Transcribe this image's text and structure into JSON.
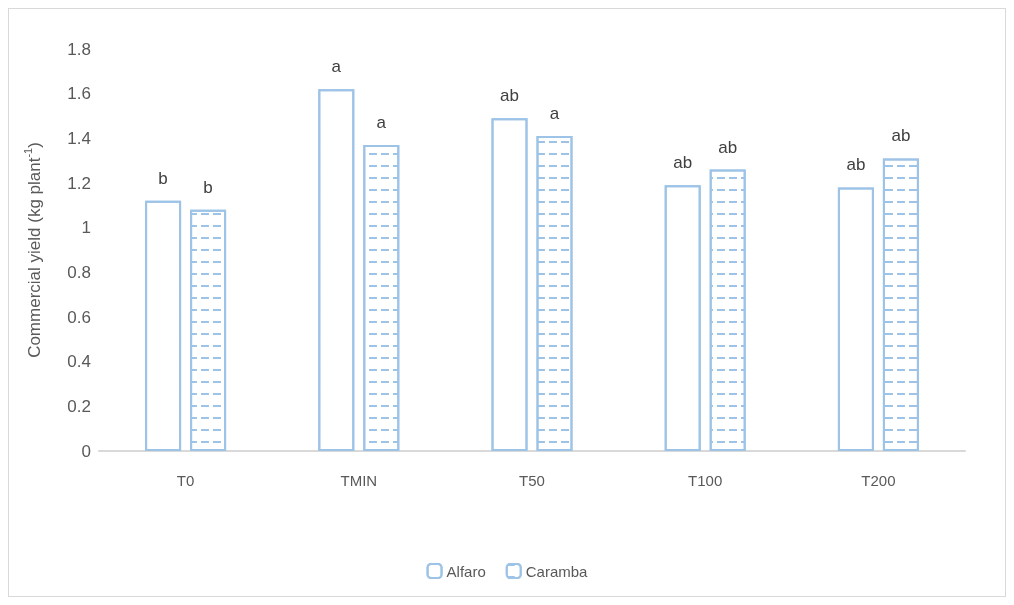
{
  "chart_data": {
    "type": "bar",
    "ylabel": "Commercial yield (kg plant$^{-1}$)",
    "categories": [
      "T0",
      "TMIN",
      "T50",
      "T100",
      "T200"
    ],
    "series": [
      {
        "name": "Alfaro",
        "color": "#9dc3e6",
        "values": [
          1.12,
          1.62,
          1.49,
          1.19,
          1.18
        ],
        "value_labels": [
          "b",
          "a",
          "ab",
          "ab",
          "ab"
        ]
      },
      {
        "name": "Caramba",
        "color": "#9dc3e6",
        "values": [
          1.08,
          1.37,
          1.41,
          1.26,
          1.31
        ],
        "value_labels": [
          "b",
          "a",
          "a",
          "ab",
          "ab"
        ]
      }
    ],
    "ylim": [
      0,
      1.8
    ],
    "yticks": [
      0,
      0.2,
      0.4,
      0.6,
      0.8,
      1,
      1.2,
      1.4,
      1.6,
      1.8
    ],
    "grid": false,
    "legend": "bottom"
  }
}
